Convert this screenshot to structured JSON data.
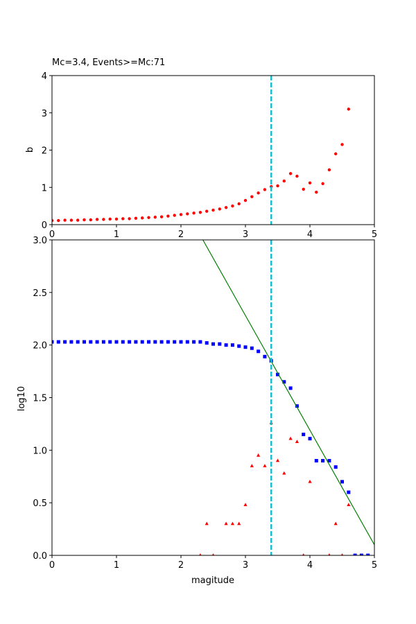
{
  "chart_data": [
    {
      "type": "scatter",
      "title": "Mc=3.4, Events>=Mc:71",
      "xlabel": "",
      "ylabel": "b",
      "xlim": [
        0,
        5
      ],
      "ylim": [
        0,
        4
      ],
      "x_ticks": [
        "0",
        "1",
        "2",
        "3",
        "4",
        "5"
      ],
      "y_ticks": [
        "0",
        "1",
        "2",
        "3",
        "4"
      ],
      "grid": false,
      "series": [
        {
          "marker": "circle",
          "color": "#ff0000",
          "x": [
            0.0,
            0.1,
            0.2,
            0.3,
            0.4,
            0.5,
            0.6,
            0.7,
            0.8,
            0.9,
            1.0,
            1.1,
            1.2,
            1.3,
            1.4,
            1.5,
            1.6,
            1.7,
            1.8,
            1.9,
            2.0,
            2.1,
            2.2,
            2.3,
            2.4,
            2.5,
            2.6,
            2.7,
            2.8,
            2.9,
            3.0,
            3.1,
            3.2,
            3.3,
            3.4,
            3.5,
            3.6,
            3.7,
            3.8,
            3.9,
            4.0,
            4.1,
            4.2,
            4.3,
            4.4,
            4.5,
            4.6
          ],
          "y": [
            0.11,
            0.11,
            0.12,
            0.12,
            0.12,
            0.13,
            0.13,
            0.14,
            0.14,
            0.15,
            0.15,
            0.16,
            0.16,
            0.17,
            0.18,
            0.19,
            0.2,
            0.21,
            0.23,
            0.25,
            0.27,
            0.29,
            0.31,
            0.33,
            0.36,
            0.39,
            0.42,
            0.46,
            0.5,
            0.56,
            0.65,
            0.75,
            0.85,
            0.94,
            1.02,
            1.04,
            1.17,
            1.37,
            1.3,
            0.95,
            1.12,
            0.87,
            1.1,
            1.47,
            1.9,
            2.15,
            3.1
          ]
        }
      ],
      "vline": {
        "x": 3.4,
        "color": "#17becf",
        "style": "dashed"
      }
    },
    {
      "type": "scatter",
      "title": "",
      "xlabel": "magitude",
      "ylabel": "log10",
      "xlim": [
        0,
        5
      ],
      "ylim": [
        0,
        3
      ],
      "x_ticks": [
        "0",
        "1",
        "2",
        "3",
        "4",
        "5"
      ],
      "y_ticks": [
        "0.0",
        "0.5",
        "1.0",
        "1.5",
        "2.0",
        "2.5",
        "3.0"
      ],
      "grid": false,
      "series": [
        {
          "marker": "square",
          "color": "#0000ff",
          "x": [
            0.0,
            0.1,
            0.2,
            0.3,
            0.4,
            0.5,
            0.6,
            0.7,
            0.8,
            0.9,
            1.0,
            1.1,
            1.2,
            1.3,
            1.4,
            1.5,
            1.6,
            1.7,
            1.8,
            1.9,
            2.0,
            2.1,
            2.2,
            2.3,
            2.4,
            2.5,
            2.6,
            2.7,
            2.8,
            2.9,
            3.0,
            3.1,
            3.2,
            3.3,
            3.4,
            3.5,
            3.6,
            3.7,
            3.8,
            3.9,
            4.0,
            4.1,
            4.2,
            4.3,
            4.4,
            4.5,
            4.6,
            4.7,
            4.8,
            4.9
          ],
          "y": [
            2.03,
            2.03,
            2.03,
            2.03,
            2.03,
            2.03,
            2.03,
            2.03,
            2.03,
            2.03,
            2.03,
            2.03,
            2.03,
            2.03,
            2.03,
            2.03,
            2.03,
            2.03,
            2.03,
            2.03,
            2.03,
            2.03,
            2.03,
            2.03,
            2.02,
            2.01,
            2.01,
            2.0,
            2.0,
            1.99,
            1.98,
            1.97,
            1.94,
            1.89,
            1.85,
            1.72,
            1.65,
            1.59,
            1.42,
            1.15,
            1.11,
            0.9,
            0.9,
            0.9,
            0.84,
            0.7,
            0.6,
            0.0,
            0.0,
            0.0
          ]
        },
        {
          "marker": "triangle",
          "color": "#ff0000",
          "x": [
            2.3,
            2.4,
            2.5,
            2.7,
            2.8,
            2.9,
            3.0,
            3.1,
            3.2,
            3.3,
            3.4,
            3.5,
            3.6,
            3.7,
            3.8,
            3.9,
            4.0,
            4.3,
            4.4,
            4.5,
            4.6
          ],
          "y": [
            0.0,
            0.3,
            0.0,
            0.3,
            0.3,
            0.3,
            0.48,
            0.85,
            0.95,
            0.85,
            1.26,
            0.9,
            0.78,
            1.11,
            1.08,
            0.0,
            0.7,
            0.0,
            0.3,
            0.0,
            0.48
          ]
        },
        {
          "type": "line",
          "color": "#008000",
          "x": [
            2.34,
            5.0
          ],
          "y": [
            3.0,
            0.1
          ]
        }
      ],
      "vline": {
        "x": 3.4,
        "color": "#17becf",
        "style": "dashed"
      }
    }
  ]
}
